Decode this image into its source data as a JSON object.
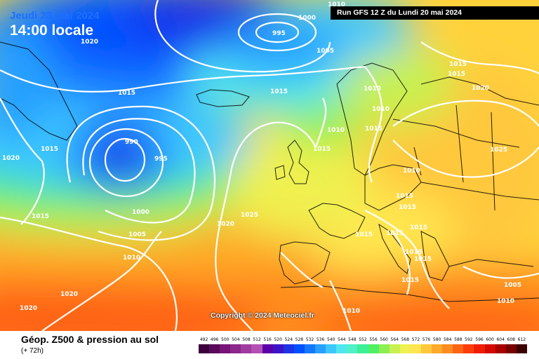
{
  "header": {
    "date": "Jeudi 23 mai 2024",
    "local_time": "14:00 locale",
    "run": "Run GFS 12 Z du Lundi 20 mai 2024"
  },
  "copyright": "Copyright © 2024 Meteociel.fr",
  "footer": {
    "title": "Géop. Z500 & pression au sol",
    "offset": "(+ 72h)"
  },
  "scale": {
    "values": [
      "492",
      "496",
      "500",
      "504",
      "508",
      "512",
      "516",
      "520",
      "524",
      "528",
      "532",
      "536",
      "540",
      "544",
      "548",
      "552",
      "556",
      "560",
      "564",
      "568",
      "572",
      "576",
      "580",
      "584",
      "588",
      "592",
      "596",
      "600",
      "604",
      "608",
      "612"
    ],
    "colors": [
      "#3c003c",
      "#5a0a5a",
      "#781478",
      "#8c288c",
      "#a03ca0",
      "#b450b4",
      "#5a00aa",
      "#3c14c8",
      "#1e32e6",
      "#0050ff",
      "#1478ff",
      "#28a0ff",
      "#3cc8ff",
      "#50e6f0",
      "#50f0c8",
      "#3cf096",
      "#50f064",
      "#8cf050",
      "#c8f050",
      "#f0f050",
      "#ffe650",
      "#ffc83c",
      "#ffaa28",
      "#ff8c1e",
      "#ff6414",
      "#ff3c0a",
      "#f01e00",
      "#d20a00",
      "#aa0000",
      "#780000",
      "#3c0000"
    ]
  },
  "map_labels": [
    {
      "text": "1020"
    },
    {
      "text": "1010"
    },
    {
      "text": "1000"
    },
    {
      "text": "995"
    },
    {
      "text": "1005"
    },
    {
      "text": "1015"
    },
    {
      "text": "1015"
    },
    {
      "text": "1015"
    },
    {
      "text": "1010"
    },
    {
      "text": "1010"
    },
    {
      "text": "1015"
    },
    {
      "text": "1015"
    },
    {
      "text": "1020"
    },
    {
      "text": "1020"
    },
    {
      "text": "1015"
    },
    {
      "text": "990"
    },
    {
      "text": "995"
    },
    {
      "text": "1010"
    },
    {
      "text": "1015"
    },
    {
      "text": "1025"
    },
    {
      "text": "1010"
    },
    {
      "text": "1015"
    },
    {
      "text": "1015"
    },
    {
      "text": "1015"
    },
    {
      "text": "1000"
    },
    {
      "text": "1025"
    },
    {
      "text": "1020"
    },
    {
      "text": "1005"
    },
    {
      "text": "1015"
    },
    {
      "text": "1015"
    },
    {
      "text": "1015"
    },
    {
      "text": "1010"
    },
    {
      "text": "1015"
    },
    {
      "text": "1015"
    },
    {
      "text": "1015"
    },
    {
      "text": "1005"
    },
    {
      "text": "1020"
    },
    {
      "text": "1020"
    },
    {
      "text": "1010"
    },
    {
      "text": "1010"
    }
  ]
}
